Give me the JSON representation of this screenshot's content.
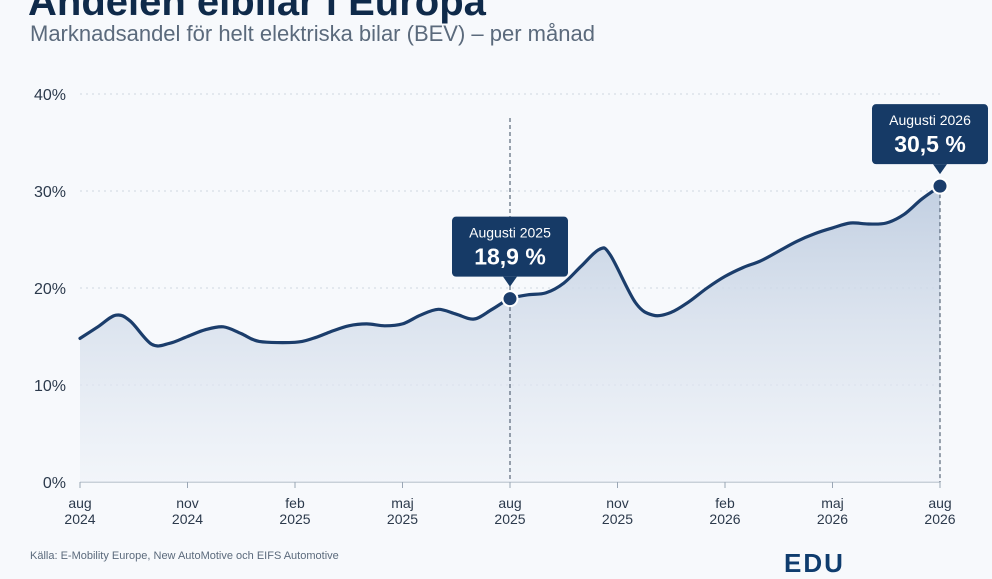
{
  "header": {
    "title": "Andelen elbilar i Europa",
    "subtitle": "Marknadsandel för helt elektriska bilar (BEV) – per månad"
  },
  "footer": {
    "source": "Källa: E-Mobility Europe, New AutoMotive och EIFS Automotive",
    "logo": "EDU"
  },
  "colors": {
    "line": "#1b3d6b",
    "area_top": "#bfcde0",
    "area_bottom": "#eef2f8",
    "callout_bg": "#163a66",
    "grid": "#cfd6e0",
    "text": "#2c3a4c"
  },
  "chart_data": {
    "type": "area",
    "ylim": [
      0,
      40
    ],
    "yticks": [
      "0%",
      "10%",
      "20%",
      "30%",
      "40%"
    ],
    "xticks": [
      {
        "month": 0,
        "label": "aug",
        "year": "2024"
      },
      {
        "month": 3,
        "label": "nov",
        "year": "2024"
      },
      {
        "month": 6,
        "label": "feb",
        "year": "2025"
      },
      {
        "month": 9,
        "label": "maj",
        "year": "2025"
      },
      {
        "month": 12,
        "label": "aug",
        "year": "2025"
      },
      {
        "month": 15,
        "label": "nov",
        "year": "2025"
      },
      {
        "month": 18,
        "label": "feb",
        "year": "2026"
      },
      {
        "month": 21,
        "label": "maj",
        "year": "2026"
      },
      {
        "month": 24,
        "label": "aug",
        "year": "2026"
      }
    ],
    "series": [
      {
        "values": [
          {
            "x": 0,
            "y": 14.8
          },
          {
            "x": 0.5,
            "y": 16.0
          },
          {
            "x": 1,
            "y": 17.2
          },
          {
            "x": 1.4,
            "y": 16.6
          },
          {
            "x": 2,
            "y": 14.2
          },
          {
            "x": 2.5,
            "y": 14.3
          },
          {
            "x": 3,
            "y": 15.0
          },
          {
            "x": 3.5,
            "y": 15.7
          },
          {
            "x": 4,
            "y": 16.0
          },
          {
            "x": 4.5,
            "y": 15.3
          },
          {
            "x": 5,
            "y": 14.5
          },
          {
            "x": 6,
            "y": 14.4
          },
          {
            "x": 6.5,
            "y": 14.8
          },
          {
            "x": 7,
            "y": 15.5
          },
          {
            "x": 7.5,
            "y": 16.1
          },
          {
            "x": 8,
            "y": 16.3
          },
          {
            "x": 8.5,
            "y": 16.1
          },
          {
            "x": 9,
            "y": 16.3
          },
          {
            "x": 9.5,
            "y": 17.2
          },
          {
            "x": 10,
            "y": 17.8
          },
          {
            "x": 10.5,
            "y": 17.3
          },
          {
            "x": 11,
            "y": 16.8
          },
          {
            "x": 11.5,
            "y": 17.8
          },
          {
            "x": 12,
            "y": 18.9
          },
          {
            "x": 12.5,
            "y": 19.3
          },
          {
            "x": 13,
            "y": 19.5
          },
          {
            "x": 13.5,
            "y": 20.5
          },
          {
            "x": 14,
            "y": 22.3
          },
          {
            "x": 14.5,
            "y": 24.0
          },
          {
            "x": 14.8,
            "y": 23.4
          },
          {
            "x": 15.5,
            "y": 18.5
          },
          {
            "x": 16,
            "y": 17.2
          },
          {
            "x": 16.5,
            "y": 17.5
          },
          {
            "x": 17,
            "y": 18.6
          },
          {
            "x": 17.5,
            "y": 20.0
          },
          {
            "x": 18,
            "y": 21.2
          },
          {
            "x": 18.5,
            "y": 22.1
          },
          {
            "x": 19,
            "y": 22.8
          },
          {
            "x": 19.5,
            "y": 23.8
          },
          {
            "x": 20,
            "y": 24.8
          },
          {
            "x": 20.5,
            "y": 25.6
          },
          {
            "x": 21,
            "y": 26.2
          },
          {
            "x": 21.5,
            "y": 26.7
          },
          {
            "x": 22,
            "y": 26.6
          },
          {
            "x": 22.5,
            "y": 26.7
          },
          {
            "x": 23,
            "y": 27.6
          },
          {
            "x": 23.5,
            "y": 29.2
          },
          {
            "x": 24,
            "y": 30.5
          }
        ]
      }
    ],
    "annotations": [
      {
        "x": 12,
        "y": 18.9,
        "label": "Augusti 2025",
        "value": "18,9 %",
        "vline": true
      },
      {
        "x": 24,
        "y": 30.5,
        "label": "Augusti 2026",
        "value": "30,5 %",
        "vline": true
      }
    ],
    "grid": true
  }
}
